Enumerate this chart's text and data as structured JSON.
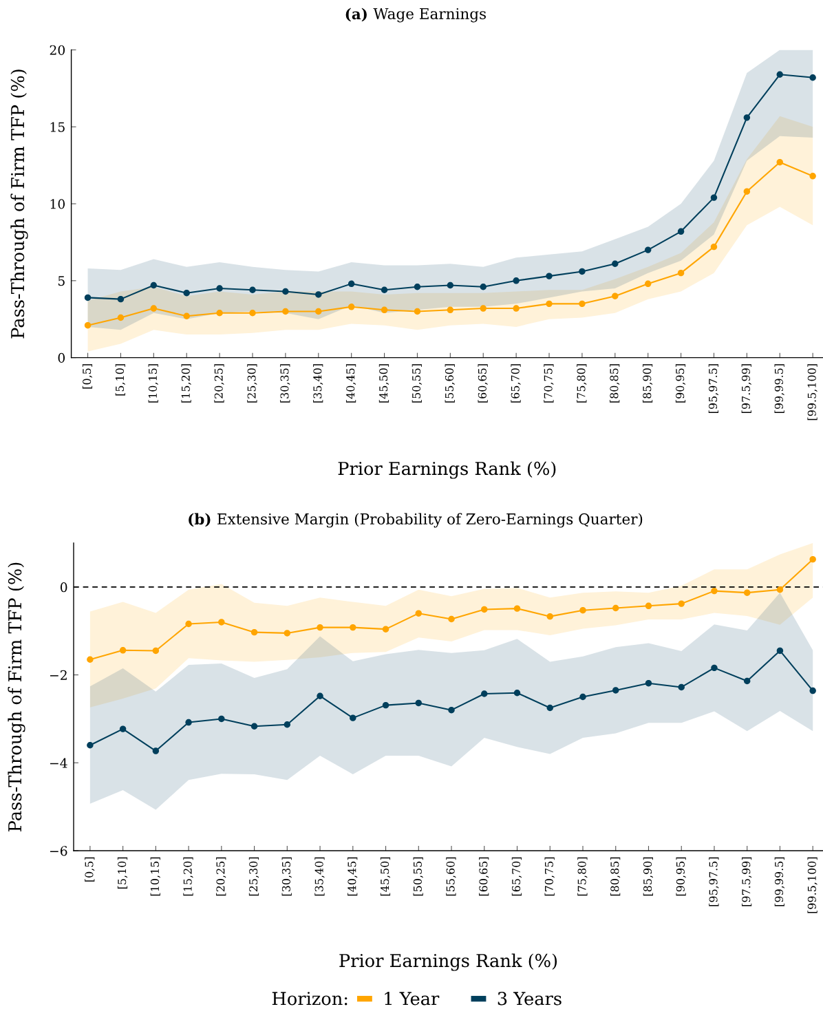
{
  "chart_data": [
    {
      "type": "line",
      "title": "(a) Wage Earnings",
      "xlabel": "Prior Earnings Rank (%)",
      "ylabel": "Pass-Through of Firm TFP (%)",
      "categories": [
        "[0,5]",
        "[5,10]",
        "[10,15]",
        "[15,20]",
        "[20,25]",
        "[25,30]",
        "[30,35]",
        "[35,40]",
        "[40,45]",
        "[45,50]",
        "[50,55]",
        "[55,60]",
        "[60,65]",
        "[65,70]",
        "[70,75]",
        "[75,80]",
        "[80,85]",
        "[85,90]",
        "[90,95]",
        "[95,97.5]",
        "[97.5,99]",
        "[99,99.5]",
        "[99.5,100]"
      ],
      "series": [
        {
          "name": "1 Year",
          "color": "#ffa500",
          "values": [
            2.1,
            2.6,
            3.2,
            2.7,
            2.9,
            2.9,
            3.0,
            3.0,
            3.3,
            3.1,
            3.0,
            3.1,
            3.2,
            3.2,
            3.5,
            3.5,
            4.0,
            4.8,
            5.5,
            7.2,
            10.8,
            12.7,
            11.8
          ],
          "lower": [
            0.4,
            0.9,
            1.8,
            1.5,
            1.5,
            1.6,
            1.8,
            1.8,
            2.2,
            2.1,
            1.8,
            2.1,
            2.2,
            2.0,
            2.5,
            2.6,
            2.9,
            3.8,
            4.3,
            5.5,
            8.6,
            9.8,
            8.6
          ],
          "upper": [
            3.7,
            4.3,
            4.6,
            4.0,
            4.3,
            4.1,
            4.3,
            4.3,
            4.3,
            4.1,
            4.2,
            4.2,
            4.2,
            4.3,
            4.4,
            4.4,
            5.1,
            5.9,
            6.8,
            8.8,
            12.9,
            15.7,
            15.0
          ]
        },
        {
          "name": "3 Years",
          "color": "#003f5c",
          "values": [
            3.9,
            3.8,
            4.7,
            4.2,
            4.5,
            4.4,
            4.3,
            4.1,
            4.8,
            4.4,
            4.6,
            4.7,
            4.6,
            5.0,
            5.3,
            5.6,
            6.1,
            7.0,
            8.2,
            10.4,
            15.6,
            18.4,
            18.2
          ],
          "lower": [
            2.0,
            1.8,
            2.9,
            2.5,
            2.9,
            3.0,
            2.9,
            2.5,
            3.4,
            2.9,
            3.1,
            3.3,
            3.3,
            3.5,
            3.9,
            4.3,
            4.5,
            5.5,
            6.3,
            8.0,
            12.8,
            14.4,
            14.3
          ],
          "upper": [
            5.8,
            5.7,
            6.4,
            5.9,
            6.2,
            5.9,
            5.7,
            5.6,
            6.2,
            6.0,
            6.0,
            6.1,
            5.9,
            6.5,
            6.7,
            6.9,
            7.7,
            8.5,
            10.0,
            12.8,
            18.5,
            20,
            20
          ]
        }
      ],
      "ylim": [
        0,
        20
      ],
      "yticks": [
        0,
        5,
        10,
        15,
        20
      ],
      "marker": "circle",
      "line_style": "solid",
      "legend": "bottom"
    },
    {
      "type": "line",
      "title": "(b) Extensive Margin (Probability of Zero-Earnings Quarter)",
      "xlabel": "Prior Earnings Rank (%)",
      "ylabel": "Pass-Through of Firm TFP (%)",
      "categories": [
        "[0,5]",
        "[5,10]",
        "[10,15]",
        "[15,20]",
        "[20,25]",
        "[25,30]",
        "[30,35]",
        "[35,40]",
        "[40,45]",
        "[45,50]",
        "[50,55]",
        "[55,60]",
        "[60,65]",
        "[65,70]",
        "[70,75]",
        "[75,80]",
        "[80,85]",
        "[85,90]",
        "[90,95]",
        "[95,97.5]",
        "[97.5,99]",
        "[99,99.5]",
        "[99.5,100]"
      ],
      "series": [
        {
          "name": "1 Year",
          "color": "#ffa500",
          "values": [
            -1.65,
            -1.44,
            -1.45,
            -0.84,
            -0.8,
            -1.03,
            -1.05,
            -0.92,
            -0.92,
            -0.96,
            -0.6,
            -0.73,
            -0.51,
            -0.49,
            -0.67,
            -0.53,
            -0.48,
            -0.43,
            -0.38,
            -0.09,
            -0.13,
            -0.06,
            0.63
          ],
          "lower": [
            -2.74,
            -2.54,
            -2.31,
            -1.62,
            -1.67,
            -1.7,
            -1.66,
            -1.6,
            -1.5,
            -1.48,
            -1.15,
            -1.24,
            -0.98,
            -0.98,
            -1.1,
            -0.95,
            -0.87,
            -0.74,
            -0.74,
            -0.59,
            -0.66,
            -0.86,
            -0.24
          ],
          "upper": [
            -0.56,
            -0.34,
            -0.59,
            -0.06,
            0.07,
            -0.36,
            -0.43,
            -0.24,
            -0.34,
            -0.43,
            -0.06,
            -0.21,
            -0.04,
            -0.02,
            -0.24,
            -0.13,
            -0.1,
            -0.13,
            0.03,
            0.4,
            0.4,
            0.74,
            1.0
          ]
        },
        {
          "name": "3 Years",
          "color": "#003f5c",
          "values": [
            -3.6,
            -3.23,
            -3.73,
            -3.08,
            -3.0,
            -3.17,
            -3.13,
            -2.48,
            -2.98,
            -2.69,
            -2.64,
            -2.8,
            -2.43,
            -2.41,
            -2.75,
            -2.5,
            -2.35,
            -2.19,
            -2.28,
            -1.84,
            -2.14,
            -1.45,
            -2.36
          ],
          "lower": [
            -4.93,
            -4.62,
            -5.07,
            -4.39,
            -4.25,
            -4.26,
            -4.39,
            -3.84,
            -4.26,
            -3.84,
            -3.84,
            -4.08,
            -3.43,
            -3.64,
            -3.8,
            -3.43,
            -3.33,
            -3.09,
            -3.09,
            -2.83,
            -3.28,
            -2.82,
            -3.28
          ],
          "upper": [
            -2.26,
            -1.85,
            -2.38,
            -1.77,
            -1.74,
            -2.07,
            -1.87,
            -1.12,
            -1.69,
            -1.53,
            -1.43,
            -1.5,
            -1.44,
            -1.18,
            -1.7,
            -1.58,
            -1.37,
            -1.28,
            -1.46,
            -0.85,
            -0.99,
            -0.13,
            -1.44
          ]
        }
      ],
      "ylim": [
        -6,
        1
      ],
      "yticks": [
        -6,
        -4,
        -2,
        0
      ],
      "marker": "circle",
      "line_style": "solid",
      "ref_lines": [
        {
          "axis": "y",
          "value": 0,
          "color": "#000000",
          "line_style": "dashed"
        }
      ],
      "legend": "bottom",
      "legend_title": "Horizon:"
    }
  ]
}
